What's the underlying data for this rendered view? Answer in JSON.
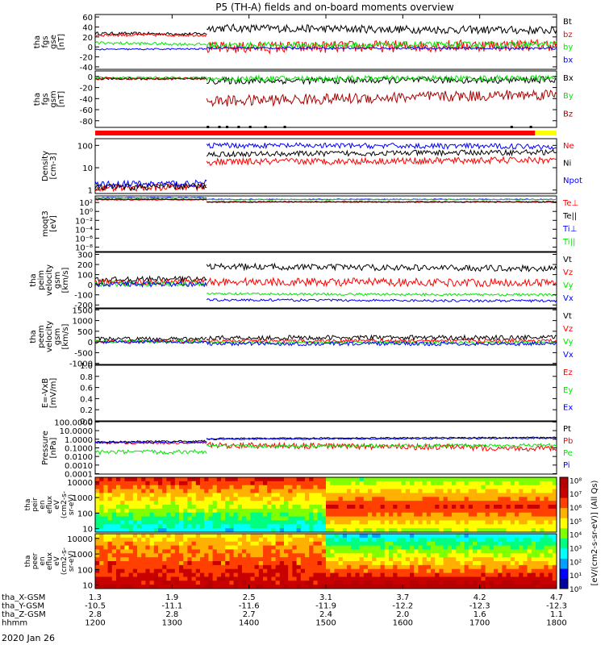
{
  "chart_data": {
    "type": "line",
    "title": "P5 (TH-A) fields and on-board moments overview",
    "date_label": "2020 Jan 26",
    "x_axis": {
      "hours": [
        12,
        13,
        14,
        15,
        16,
        17,
        18
      ],
      "rows": [
        {
          "label": "tha_X-GSM",
          "values": [
            "1.3",
            "1.9",
            "2.5",
            "3.1",
            "3.7",
            "4.2",
            "4.7"
          ]
        },
        {
          "label": "tha_Y-GSM",
          "values": [
            "-10.5",
            "-11.1",
            "-11.6",
            "-11.9",
            "-12.2",
            "-12.3",
            "-12.3"
          ]
        },
        {
          "label": "tha_Z-GSM",
          "values": [
            "2.8",
            "2.8",
            "2.7",
            "2.4",
            "2.0",
            "1.6",
            "1.1"
          ]
        },
        {
          "label": "hhmm",
          "values": [
            "1200",
            "1300",
            "1400",
            "1500",
            "1600",
            "1700",
            "1800"
          ]
        }
      ]
    },
    "panels": [
      {
        "id": "fgs-gse",
        "ylabel": [
          "tha",
          "fgs",
          "gse",
          "[nT]"
        ],
        "ticks": [
          {
            "v": 60,
            "label": "60"
          },
          {
            "v": 40,
            "label": "40"
          },
          {
            "v": 20,
            "label": "20"
          },
          {
            "v": 0,
            "label": "0"
          },
          {
            "v": -20,
            "label": "-20"
          },
          {
            "v": -40,
            "label": "-40"
          }
        ],
        "ylim": [
          -45,
          65
        ],
        "series": [
          {
            "name": "Bt",
            "color": "#000000",
            "segments": [
              [
                0,
                1.45,
                27,
                26,
                3
              ],
              [
                1.45,
                6,
                38,
                33,
                8
              ]
            ]
          },
          {
            "name": "bz",
            "color": "#ff0000",
            "segments": [
              [
                0,
                1.45,
                24,
                24,
                3
              ],
              [
                1.45,
                6,
                -2,
                4,
                12
              ]
            ]
          },
          {
            "name": "by",
            "color": "#00e600",
            "segments": [
              [
                0,
                1.45,
                8,
                5,
                3
              ],
              [
                1.45,
                6,
                3,
                5,
                6
              ]
            ]
          },
          {
            "name": "bx",
            "color": "#0000ff",
            "segments": [
              [
                0,
                1.45,
                -5,
                -4,
                1.5
              ],
              [
                1.45,
                6,
                -2,
                -3,
                2
              ]
            ]
          }
        ]
      },
      {
        "id": "fgs-gsm",
        "ylabel": [
          "tha",
          "fgs",
          "gsm",
          "[nT]"
        ],
        "ticks": [
          {
            "v": 0,
            "label": "0"
          },
          {
            "v": -20,
            "label": "-20"
          },
          {
            "v": -40,
            "label": "-40"
          },
          {
            "v": -60,
            "label": "-60"
          },
          {
            "v": -80,
            "label": "-80"
          }
        ],
        "ylim": [
          -92,
          10
        ],
        "series": [
          {
            "name": "Bx",
            "color": "#000000",
            "segments": [
              [
                0,
                1.45,
                -4,
                -4,
                2
              ],
              [
                1.45,
                6,
                -8,
                -6,
                6
              ]
            ]
          },
          {
            "name": "By",
            "color": "#00e600",
            "segments": [
              [
                0,
                1.45,
                -2,
                -2,
                2
              ],
              [
                1.45,
                6,
                -4,
                -3,
                5
              ]
            ]
          },
          {
            "name": "Bz",
            "color": "#a80000",
            "segments": [
              [
                0,
                1.45,
                -4,
                -4,
                2
              ],
              [
                1.45,
                6,
                -45,
                -32,
                10
              ]
            ]
          }
        ]
      },
      {
        "id": "density",
        "ylabel": [
          "Density",
          "[cm-3]"
        ],
        "log": true,
        "ticks": [
          {
            "v": 1,
            "label": "1"
          },
          {
            "v": 10,
            "label": "10"
          },
          {
            "v": 100,
            "label": "100"
          }
        ],
        "ylim": [
          0.7,
          200
        ],
        "series": [
          {
            "name": "Ne",
            "color": "#ff0000",
            "segments": [
              [
                0,
                1.45,
                1.2,
                1.4,
                0.15
              ],
              [
                1.45,
                6,
                18,
                22,
                0.15
              ]
            ]
          },
          {
            "name": "Ni",
            "color": "#000000",
            "segments": [
              [
                0,
                1.45,
                1.3,
                1.5,
                0.15
              ],
              [
                1.45,
                6,
                40,
                50,
                0.12
              ]
            ]
          },
          {
            "name": "Npot",
            "color": "#0000ff",
            "segments": [
              [
                0,
                1.45,
                1.8,
                2.0,
                0.15
              ],
              [
                1.45,
                6,
                100,
                90,
                0.12
              ]
            ]
          }
        ]
      },
      {
        "id": "temperature",
        "ylabel": [
          "moqt3",
          "[eV]"
        ],
        "log": true,
        "ticks": [
          {
            "v": 100,
            "label": "10²"
          },
          {
            "v": 1,
            "label": "10⁰"
          },
          {
            "v": 0.01,
            "label": "10⁻²"
          },
          {
            "v": 0.0001,
            "label": "10⁻⁴"
          },
          {
            "v": 1e-06,
            "label": "10⁻⁶"
          },
          {
            "v": 1e-08,
            "label": "10⁻⁸"
          }
        ],
        "ylim": [
          1e-09,
          3000
        ],
        "series": [
          {
            "name": "Te⊥",
            "color": "#ff0000",
            "segments": [
              [
                0,
                1.45,
                400,
                400,
                0.1
              ],
              [
                1.45,
                6,
                120,
                120,
                0.1
              ]
            ]
          },
          {
            "name": "Te||",
            "color": "#000000",
            "segments": [
              [
                0,
                1.45,
                500,
                500,
                0.1
              ],
              [
                1.45,
                6,
                150,
                150,
                0.1
              ]
            ]
          },
          {
            "name": "Ti⊥",
            "color": "#0000ff",
            "segments": [
              [
                0,
                1.45,
                1200,
                1200,
                0.1
              ],
              [
                1.45,
                6,
                500,
                500,
                0.1
              ]
            ]
          },
          {
            "name": "Ti||",
            "color": "#00e600",
            "segments": [
              [
                0,
                1.45,
                1000,
                1000,
                0.1
              ],
              [
                1.45,
                6,
                450,
                450,
                0.1
              ]
            ]
          }
        ]
      },
      {
        "id": "peim-velocity",
        "ylabel": [
          "tha",
          "peim",
          "velocity",
          "gsm",
          "[km/s]"
        ],
        "ticks": [
          {
            "v": 300,
            "label": "300"
          },
          {
            "v": 200,
            "label": "200"
          },
          {
            "v": 100,
            "label": "100"
          },
          {
            "v": 0,
            "label": "0"
          },
          {
            "v": -100,
            "label": "-100"
          },
          {
            "v": -200,
            "label": "-200"
          }
        ],
        "ylim": [
          -230,
          320
        ],
        "series": [
          {
            "name": "Vt",
            "color": "#000000",
            "segments": [
              [
                0,
                1.45,
                50,
                60,
                25
              ],
              [
                1.45,
                6,
                180,
                160,
                30
              ]
            ]
          },
          {
            "name": "Vz",
            "color": "#ff0000",
            "segments": [
              [
                0,
                1.45,
                20,
                30,
                30
              ],
              [
                1.45,
                6,
                30,
                20,
                40
              ]
            ]
          },
          {
            "name": "Vy",
            "color": "#00e600",
            "segments": [
              [
                0,
                1.45,
                10,
                10,
                25
              ],
              [
                1.45,
                6,
                -90,
                -100,
                12
              ]
            ]
          },
          {
            "name": "Vx",
            "color": "#0000ff",
            "segments": [
              [
                0,
                1.45,
                5,
                5,
                25
              ],
              [
                1.45,
                6,
                -150,
                -160,
                12
              ]
            ]
          }
        ]
      },
      {
        "id": "peem-velocity",
        "ylabel": [
          "tha",
          "peem",
          "velocity",
          "gsm",
          "[km/s]"
        ],
        "ticks": [
          {
            "v": 1500,
            "label": "1500"
          },
          {
            "v": 1000,
            "label": "1000"
          },
          {
            "v": 500,
            "label": "500"
          },
          {
            "v": 0,
            "label": "0"
          },
          {
            "v": -500,
            "label": "-500"
          },
          {
            "v": -1000,
            "label": "-1000"
          }
        ],
        "ylim": [
          -1050,
          1550
        ],
        "series": [
          {
            "name": "Vt",
            "color": "#000000",
            "segments": [
              [
                0,
                1.45,
                150,
                150,
                80
              ],
              [
                1.45,
                6,
                200,
                200,
                110
              ]
            ]
          },
          {
            "name": "Vz",
            "color": "#ff0000",
            "segments": [
              [
                0,
                1.45,
                40,
                40,
                70
              ],
              [
                1.45,
                6,
                50,
                50,
                80
              ]
            ]
          },
          {
            "name": "Vy",
            "color": "#00e600",
            "segments": [
              [
                0,
                1.45,
                20,
                20,
                60
              ],
              [
                1.45,
                6,
                -30,
                -30,
                60
              ]
            ]
          },
          {
            "name": "Vx",
            "color": "#0000ff",
            "segments": [
              [
                0,
                1.45,
                0,
                0,
                70
              ],
              [
                1.45,
                6,
                -80,
                -80,
                90
              ]
            ]
          }
        ]
      },
      {
        "id": "efield",
        "ylabel": [
          "E=-VxB",
          "[mV/m]"
        ],
        "ticks": [
          {
            "v": 1,
            "label": "1.0"
          },
          {
            "v": 0.8,
            "label": "0.8"
          },
          {
            "v": 0.6,
            "label": "0.6"
          },
          {
            "v": 0.4,
            "label": "0.4"
          },
          {
            "v": 0.2,
            "label": "0.2"
          },
          {
            "v": 0,
            "label": "0.0"
          }
        ],
        "ylim": [
          0,
          1
        ],
        "series": [
          {
            "name": "Ez",
            "color": "#ff0000",
            "segments": []
          },
          {
            "name": "Ey",
            "color": "#00e600",
            "segments": []
          },
          {
            "name": "Ex",
            "color": "#0000ff",
            "segments": []
          }
        ]
      },
      {
        "id": "pressure",
        "ylabel": [
          "Pressure",
          "[nPa]"
        ],
        "log": true,
        "ticks": [
          {
            "v": 100,
            "label": "100.0000"
          },
          {
            "v": 10,
            "label": "10.0000"
          },
          {
            "v": 1,
            "label": "1.0000"
          },
          {
            "v": 0.1,
            "label": "0.1000"
          },
          {
            "v": 0.01,
            "label": "0.0100"
          },
          {
            "v": 0.001,
            "label": "0.0010"
          },
          {
            "v": 0.0001,
            "label": "0.0001"
          }
        ],
        "ylim": [
          9e-05,
          110
        ],
        "series": [
          {
            "name": "Pt",
            "color": "#000000",
            "segments": [
              [
                0,
                1.45,
                0.5,
                0.6,
                0.1
              ],
              [
                1.45,
                6,
                1.2,
                1.6,
                0.08
              ]
            ]
          },
          {
            "name": "Pb",
            "color": "#ff0000",
            "segments": [
              [
                0,
                1.45,
                0.35,
                0.4,
                0.12
              ],
              [
                1.45,
                6,
                0.2,
                0.08,
                0.35
              ]
            ]
          },
          {
            "name": "Pe",
            "color": "#00e600",
            "segments": [
              [
                0,
                1.45,
                0.03,
                0.035,
                0.25
              ],
              [
                1.45,
                6,
                0.15,
                0.2,
                0.2
              ]
            ]
          },
          {
            "name": "Pi",
            "color": "#0000ff",
            "segments": [
              [
                0,
                1.45,
                0.4,
                0.45,
                0.1
              ],
              [
                1.45,
                6,
                1.0,
                1.3,
                0.08
              ]
            ]
          }
        ]
      }
    ],
    "spectrograms": [
      {
        "id": "peir",
        "ylabel": [
          "tha",
          "peir",
          "en",
          "eflux",
          "eV",
          "(cm2-s-",
          "sr-eV)"
        ],
        "ticks": [
          {
            "v": 10000,
            "label": "10000"
          },
          {
            "v": 1000,
            "label": "1000"
          },
          {
            "v": 100,
            "label": "100"
          },
          {
            "v": 10,
            "label": "10"
          }
        ]
      },
      {
        "id": "peer",
        "ylabel": [
          "tha",
          "peer",
          "en",
          "eflux",
          "eV",
          "(cm2-s-",
          "sr-eV)"
        ],
        "ticks": [
          {
            "v": 10000,
            "label": "10000"
          },
          {
            "v": 1000,
            "label": "1000"
          },
          {
            "v": 100,
            "label": "100"
          },
          {
            "v": 10,
            "label": "10"
          }
        ]
      }
    ],
    "colorbar": {
      "label": "[eV/(cm2-s-sr-eV)] (All Qs)",
      "ticks": [
        {
          "v": 8,
          "label": "10⁸"
        },
        {
          "v": 7,
          "label": "10⁷"
        },
        {
          "v": 6,
          "label": "10⁶"
        },
        {
          "v": 5,
          "label": "10⁵"
        },
        {
          "v": 4,
          "label": "10⁴"
        },
        {
          "v": 3,
          "label": "10³"
        },
        {
          "v": 2,
          "label": "10²"
        },
        {
          "v": 1,
          "label": "10¹"
        },
        {
          "v": 0,
          "label": "10⁰"
        }
      ],
      "colors": [
        "#0000a0",
        "#0000ff",
        "#00a0ff",
        "#00ffff",
        "#00ff80",
        "#80ff00",
        "#ffff00",
        "#ffb000",
        "#ff4000",
        "#c80000",
        "#b40000"
      ]
    }
  }
}
